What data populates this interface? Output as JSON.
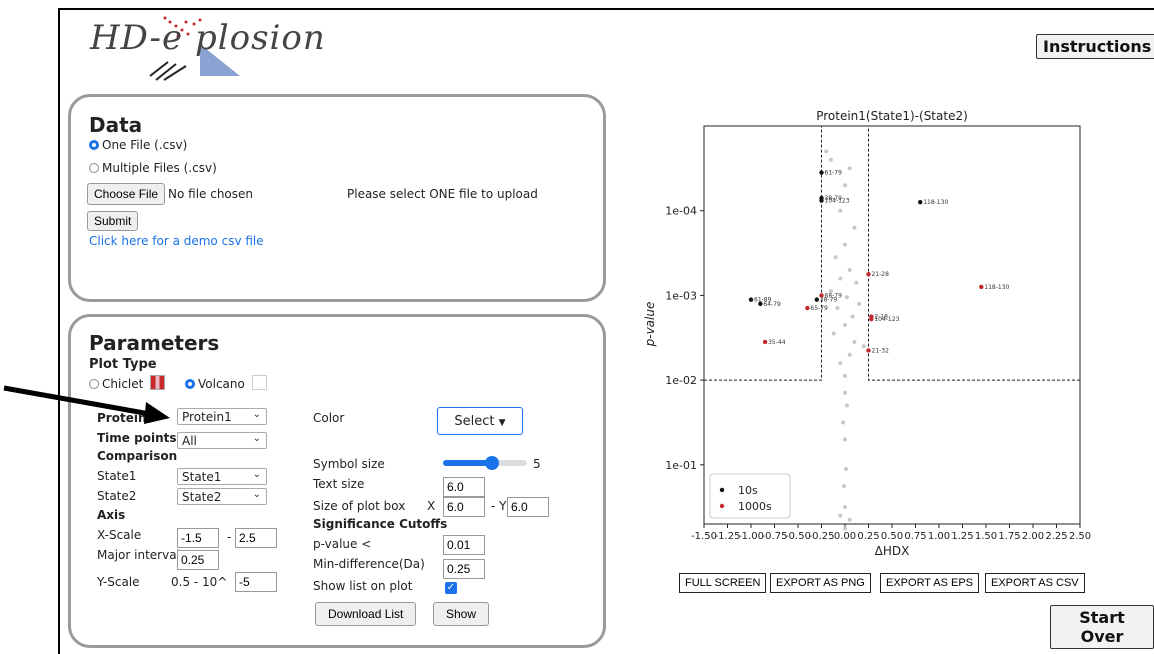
{
  "app": {
    "logo_text": "HD-e  plosion"
  },
  "header": {
    "instructions_label": "Instructions"
  },
  "data_panel": {
    "title": "Data",
    "radio_one": "One File (.csv)",
    "radio_multi": "Multiple Files (.csv)",
    "choose_file_label": "Choose File",
    "no_file_text": "No file chosen",
    "hint": "Please select ONE file to upload",
    "submit_label": "Submit",
    "demo_link": "Click here for a demo csv file"
  },
  "params": {
    "title": "Parameters",
    "plot_type_label": "Plot Type",
    "chiclet_label": "Chiclet",
    "volcano_label": "Volcano",
    "protein_label": "Protein",
    "protein_value": "Protein1",
    "time_points_label": "Time points",
    "time_points_value": "All",
    "comparison_label": "Comparison",
    "state1_label": "State1",
    "state1_value": "State1",
    "state2_label": "State2",
    "state2_value": "State2",
    "axis_label": "Axis",
    "xscale_label": "X-Scale",
    "xscale_min": "-1.5",
    "xscale_dash": "-",
    "xscale_max": "2.5",
    "major_interval_label": "Major interval",
    "major_interval_value": "0.25",
    "yscale_label": "Y-Scale",
    "yscale_prefix": "0.5 - 10^",
    "yscale_value": "-5",
    "color_label": "Color",
    "color_select_label": "Select",
    "symbol_size_label": "Symbol size",
    "symbol_size_value": "5",
    "symbol_size_fraction": 0.58,
    "text_size_label": "Text size",
    "text_size_value": "6.0",
    "plot_box_label": "Size of plot box",
    "plot_box_x_prefix": "X",
    "plot_box_x": "6.0",
    "plot_box_y_prefix": "- Y",
    "plot_box_y": "6.0",
    "significance_label": "Significance Cutoffs",
    "pvalue_label": "p-value <",
    "pvalue_value": "0.01",
    "min_diff_label": "Min-difference(Da)",
    "min_diff_value": "0.25",
    "show_list_label": "Show list on plot",
    "download_list_label": "Download List",
    "show_label": "Show"
  },
  "export": {
    "full_screen": "FULL SCREEN",
    "png": "EXPORT AS PNG",
    "eps": "EXPORT AS EPS",
    "csv": "EXPORT AS CSV"
  },
  "start_over_label": "Start Over",
  "chart_data": {
    "type": "scatter",
    "title": "Protein1(State1)-(State2)",
    "xlabel": "ΔHDX",
    "ylabel": "p-value",
    "xlim": [
      -1.5,
      2.5
    ],
    "x_ticks": [
      "-1.50",
      "-1.25",
      "-1.00",
      "-0.75",
      "-0.50",
      "-0.25",
      "0.00",
      "0.25",
      "0.50",
      "0.75",
      "1.00",
      "1.25",
      "1.50",
      "1.75",
      "2.00",
      "2.25",
      "2.50"
    ],
    "x_tick_values": [
      -1.5,
      -1.25,
      -1.0,
      -0.75,
      -0.5,
      -0.25,
      0.0,
      0.25,
      0.5,
      0.75,
      1.0,
      1.25,
      1.5,
      1.75,
      2.0,
      2.25,
      2.5
    ],
    "y_ticks": [
      "1e-04",
      "1e-03",
      "1e-02",
      "1e-01"
    ],
    "y_tick_exponents": [
      -4,
      -3,
      -2,
      -1
    ],
    "y_scale": "log, inverted (small p-values at top)",
    "ylim": [
      0.5,
      1e-05
    ],
    "cutoffs": {
      "p_value": 0.01,
      "delta": 0.25
    },
    "legend_position": "bottom-left",
    "colors": {
      "10s": "#111111",
      "1000s": "#c0282d",
      "insignificant": "#c8c8c8"
    },
    "series": [
      {
        "name": "10s",
        "points": [
          {
            "x": -0.25,
            "logp": -4.45,
            "label": "61-79"
          },
          {
            "x": -0.25,
            "logp": -4.15,
            "label": "38-79"
          },
          {
            "x": -0.25,
            "logp": -4.12,
            "label": "104-123"
          },
          {
            "x": 0.8,
            "logp": -4.1,
            "label": "118-130"
          },
          {
            "x": -1.0,
            "logp": -2.95,
            "label": "61-89"
          },
          {
            "x": -0.9,
            "logp": -2.9,
            "label": "64-79"
          },
          {
            "x": -0.3,
            "logp": -2.95,
            "label": "38-79"
          }
        ]
      },
      {
        "name": "1000s",
        "points": [
          {
            "x": 0.25,
            "logp": -3.25,
            "label": "21-28"
          },
          {
            "x": 1.45,
            "logp": -3.1,
            "label": "118-130"
          },
          {
            "x": -0.25,
            "logp": -3.0,
            "label": "68-79"
          },
          {
            "x": -0.4,
            "logp": -2.85,
            "label": "65-79"
          },
          {
            "x": 0.28,
            "logp": -2.75,
            "label": "2-18"
          },
          {
            "x": 0.28,
            "logp": -2.72,
            "label": "104-123"
          },
          {
            "x": -0.85,
            "logp": -2.45,
            "label": "35-44"
          },
          {
            "x": 0.25,
            "logp": -2.35,
            "label": "21-32"
          }
        ]
      },
      {
        "points": [
          {
            "x": -0.2,
            "logp": -4.7
          },
          {
            "x": -0.15,
            "logp": -4.6
          },
          {
            "x": 0.05,
            "logp": -4.5
          },
          {
            "x": 0.0,
            "logp": -4.3
          },
          {
            "x": -0.05,
            "logp": -4.0
          },
          {
            "x": 0.1,
            "logp": -3.8
          },
          {
            "x": 0.0,
            "logp": -3.6
          },
          {
            "x": -0.1,
            "logp": -3.45
          },
          {
            "x": 0.05,
            "logp": -3.3
          },
          {
            "x": -0.05,
            "logp": -3.2
          },
          {
            "x": 0.12,
            "logp": -3.15
          },
          {
            "x": -0.15,
            "logp": -3.05
          },
          {
            "x": 0.02,
            "logp": -2.98
          },
          {
            "x": 0.15,
            "logp": -2.9
          },
          {
            "x": -0.08,
            "logp": -2.85
          },
          {
            "x": 0.08,
            "logp": -2.75
          },
          {
            "x": 0.0,
            "logp": -2.65
          },
          {
            "x": -0.12,
            "logp": -2.55
          },
          {
            "x": 0.1,
            "logp": -2.45
          },
          {
            "x": 0.2,
            "logp": -2.4
          },
          {
            "x": 0.05,
            "logp": -2.3
          },
          {
            "x": -0.05,
            "logp": -2.2
          },
          {
            "x": 0.0,
            "logp": -2.05
          },
          {
            "x": 0.0,
            "logp": -1.85
          },
          {
            "x": 0.02,
            "logp": -1.7
          },
          {
            "x": -0.02,
            "logp": -1.5
          },
          {
            "x": 0.0,
            "logp": -1.3
          },
          {
            "x": 0.01,
            "logp": -0.95
          },
          {
            "x": -0.01,
            "logp": -0.75
          },
          {
            "x": 0.0,
            "logp": -0.5
          },
          {
            "x": -0.05,
            "logp": -0.4
          },
          {
            "x": 0.05,
            "logp": -0.35
          },
          {
            "x": 0.0,
            "logp": -0.25
          }
        ]
      }
    ]
  }
}
